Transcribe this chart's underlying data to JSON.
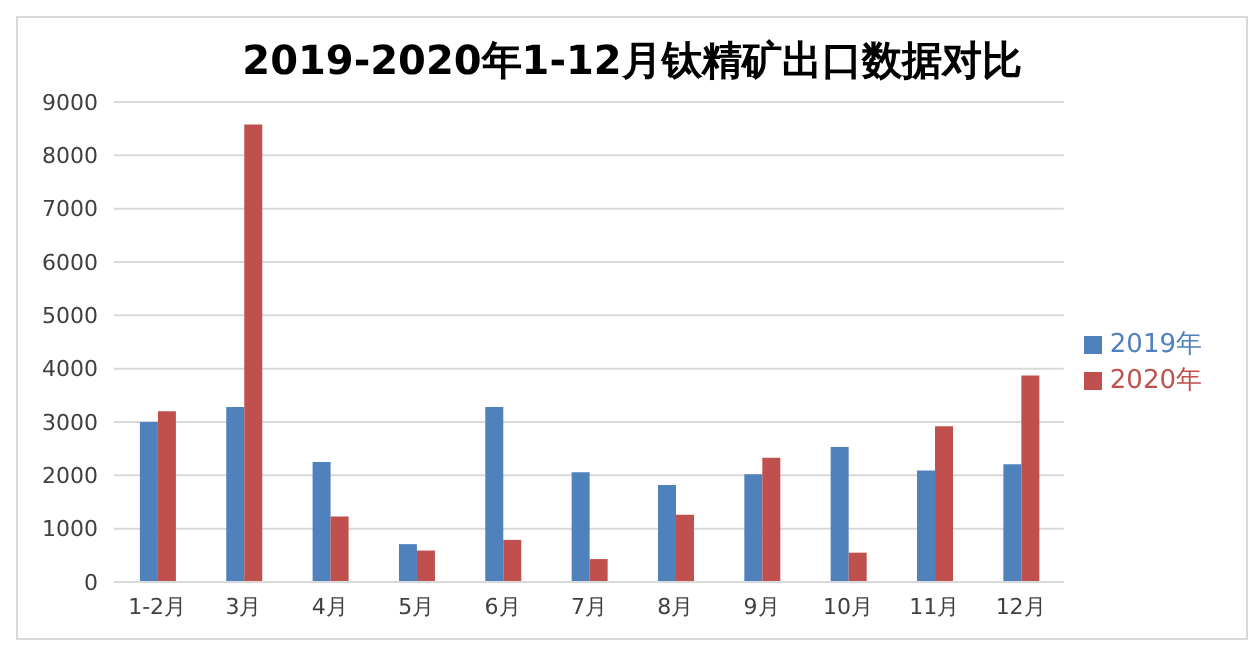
{
  "chart_data": {
    "type": "bar",
    "title": "2019-2020年1-12月钛精矿出口数据对比",
    "categories": [
      "1-2月",
      "3月",
      "4月",
      "5月",
      "6月",
      "7月",
      "8月",
      "9月",
      "10月",
      "11月",
      "12月"
    ],
    "series": [
      {
        "name": "2019年",
        "color": "#4f81bd",
        "values": [
          3000,
          3280,
          2250,
          710,
          3280,
          2060,
          1820,
          2020,
          2530,
          2090,
          2210
        ]
      },
      {
        "name": "2020年",
        "color": "#c0504d",
        "values": [
          3200,
          8580,
          1230,
          590,
          790,
          430,
          1260,
          2330,
          550,
          2920,
          3870
        ]
      }
    ],
    "ylim": [
      0,
      9000
    ],
    "yticks": [
      0,
      1000,
      2000,
      3000,
      4000,
      5000,
      6000,
      7000,
      8000,
      9000
    ],
    "grid": "y",
    "legend": "right"
  }
}
